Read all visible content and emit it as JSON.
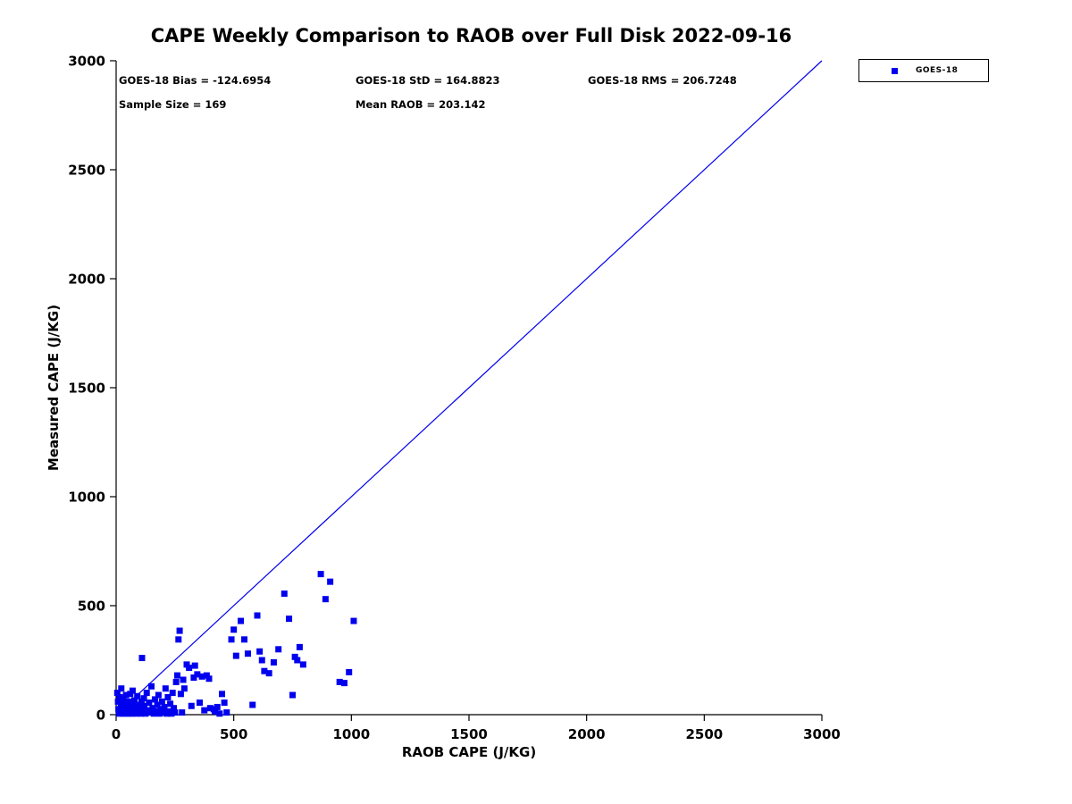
{
  "chart_data": {
    "type": "scatter",
    "title": "CAPE Weekly Comparison to RAOB over Full Disk 2022-09-16",
    "xlabel": "RAOB CAPE (J/KG)",
    "ylabel": "Measured CAPE (J/KG)",
    "xlim": [
      0,
      3000
    ],
    "ylim": [
      0,
      3000
    ],
    "xticks": [
      0,
      500,
      1000,
      1500,
      2000,
      2500,
      3000
    ],
    "yticks": [
      0,
      500,
      1000,
      1500,
      2000,
      2500,
      3000
    ],
    "grid": false,
    "legend_position": "outside-top-right",
    "identity_line": {
      "from": [
        0,
        0
      ],
      "to": [
        3000,
        3000
      ]
    },
    "marker_color": "#0000EE",
    "line_color": "#0000EE",
    "series_name": "GOES-18",
    "points": [
      [
        5,
        100
      ],
      [
        8,
        60
      ],
      [
        10,
        25
      ],
      [
        12,
        5
      ],
      [
        15,
        80
      ],
      [
        18,
        10
      ],
      [
        20,
        45
      ],
      [
        22,
        120
      ],
      [
        25,
        15
      ],
      [
        28,
        5
      ],
      [
        30,
        70
      ],
      [
        33,
        30
      ],
      [
        35,
        10
      ],
      [
        38,
        55
      ],
      [
        40,
        5
      ],
      [
        42,
        90
      ],
      [
        45,
        20
      ],
      [
        48,
        35
      ],
      [
        50,
        10
      ],
      [
        52,
        60
      ],
      [
        55,
        5
      ],
      [
        58,
        25
      ],
      [
        60,
        95
      ],
      [
        63,
        15
      ],
      [
        65,
        40
      ],
      [
        68,
        5
      ],
      [
        70,
        110
      ],
      [
        73,
        30
      ],
      [
        75,
        10
      ],
      [
        78,
        65
      ],
      [
        80,
        20
      ],
      [
        85,
        5
      ],
      [
        88,
        45
      ],
      [
        90,
        85
      ],
      [
        95,
        15
      ],
      [
        100,
        35
      ],
      [
        105,
        5
      ],
      [
        108,
        60
      ],
      [
        110,
        260
      ],
      [
        112,
        25
      ],
      [
        115,
        10
      ],
      [
        118,
        75
      ],
      [
        120,
        40
      ],
      [
        125,
        5
      ],
      [
        130,
        100
      ],
      [
        135,
        20
      ],
      [
        140,
        55
      ],
      [
        145,
        10
      ],
      [
        150,
        130
      ],
      [
        155,
        30
      ],
      [
        160,
        5
      ],
      [
        165,
        70
      ],
      [
        170,
        15
      ],
      [
        175,
        45
      ],
      [
        180,
        90
      ],
      [
        185,
        5
      ],
      [
        190,
        25
      ],
      [
        195,
        60
      ],
      [
        200,
        10
      ],
      [
        205,
        35
      ],
      [
        210,
        120
      ],
      [
        215,
        5
      ],
      [
        220,
        80
      ],
      [
        225,
        15
      ],
      [
        230,
        50
      ],
      [
        235,
        5
      ],
      [
        240,
        100
      ],
      [
        245,
        30
      ],
      [
        250,
        10
      ],
      [
        255,
        150
      ],
      [
        260,
        180
      ],
      [
        265,
        345
      ],
      [
        270,
        385
      ],
      [
        275,
        95
      ],
      [
        280,
        10
      ],
      [
        285,
        160
      ],
      [
        290,
        120
      ],
      [
        300,
        230
      ],
      [
        310,
        215
      ],
      [
        320,
        40
      ],
      [
        330,
        170
      ],
      [
        335,
        225
      ],
      [
        345,
        185
      ],
      [
        355,
        55
      ],
      [
        365,
        175
      ],
      [
        375,
        20
      ],
      [
        385,
        180
      ],
      [
        395,
        165
      ],
      [
        400,
        30
      ],
      [
        415,
        25
      ],
      [
        420,
        15
      ],
      [
        430,
        35
      ],
      [
        440,
        5
      ],
      [
        450,
        95
      ],
      [
        460,
        55
      ],
      [
        470,
        10
      ],
      [
        490,
        345
      ],
      [
        500,
        390
      ],
      [
        510,
        270
      ],
      [
        530,
        430
      ],
      [
        545,
        345
      ],
      [
        560,
        280
      ],
      [
        580,
        45
      ],
      [
        600,
        455
      ],
      [
        610,
        290
      ],
      [
        620,
        250
      ],
      [
        630,
        200
      ],
      [
        650,
        190
      ],
      [
        670,
        240
      ],
      [
        690,
        300
      ],
      [
        715,
        555
      ],
      [
        735,
        440
      ],
      [
        750,
        90
      ],
      [
        760,
        265
      ],
      [
        770,
        250
      ],
      [
        780,
        310
      ],
      [
        795,
        230
      ],
      [
        870,
        645
      ],
      [
        890,
        530
      ],
      [
        910,
        610
      ],
      [
        950,
        150
      ],
      [
        970,
        145
      ],
      [
        990,
        195
      ],
      [
        1010,
        430
      ]
    ],
    "annotations": {
      "bias": "GOES-18 Bias = -124.6954",
      "std": "GOES-18 StD = 164.8823",
      "rms": "GOES-18 RMS = 206.7248",
      "sample_size": "Sample Size = 169",
      "mean_raob": "Mean RAOB = 203.142"
    },
    "stats": {
      "bias": -124.6954,
      "std": 164.8823,
      "rms": 206.7248,
      "sample_size": 169,
      "mean_raob": 203.142
    },
    "legend": {
      "entries": [
        {
          "label": "GOES-18",
          "marker": "blue-square"
        }
      ]
    }
  }
}
